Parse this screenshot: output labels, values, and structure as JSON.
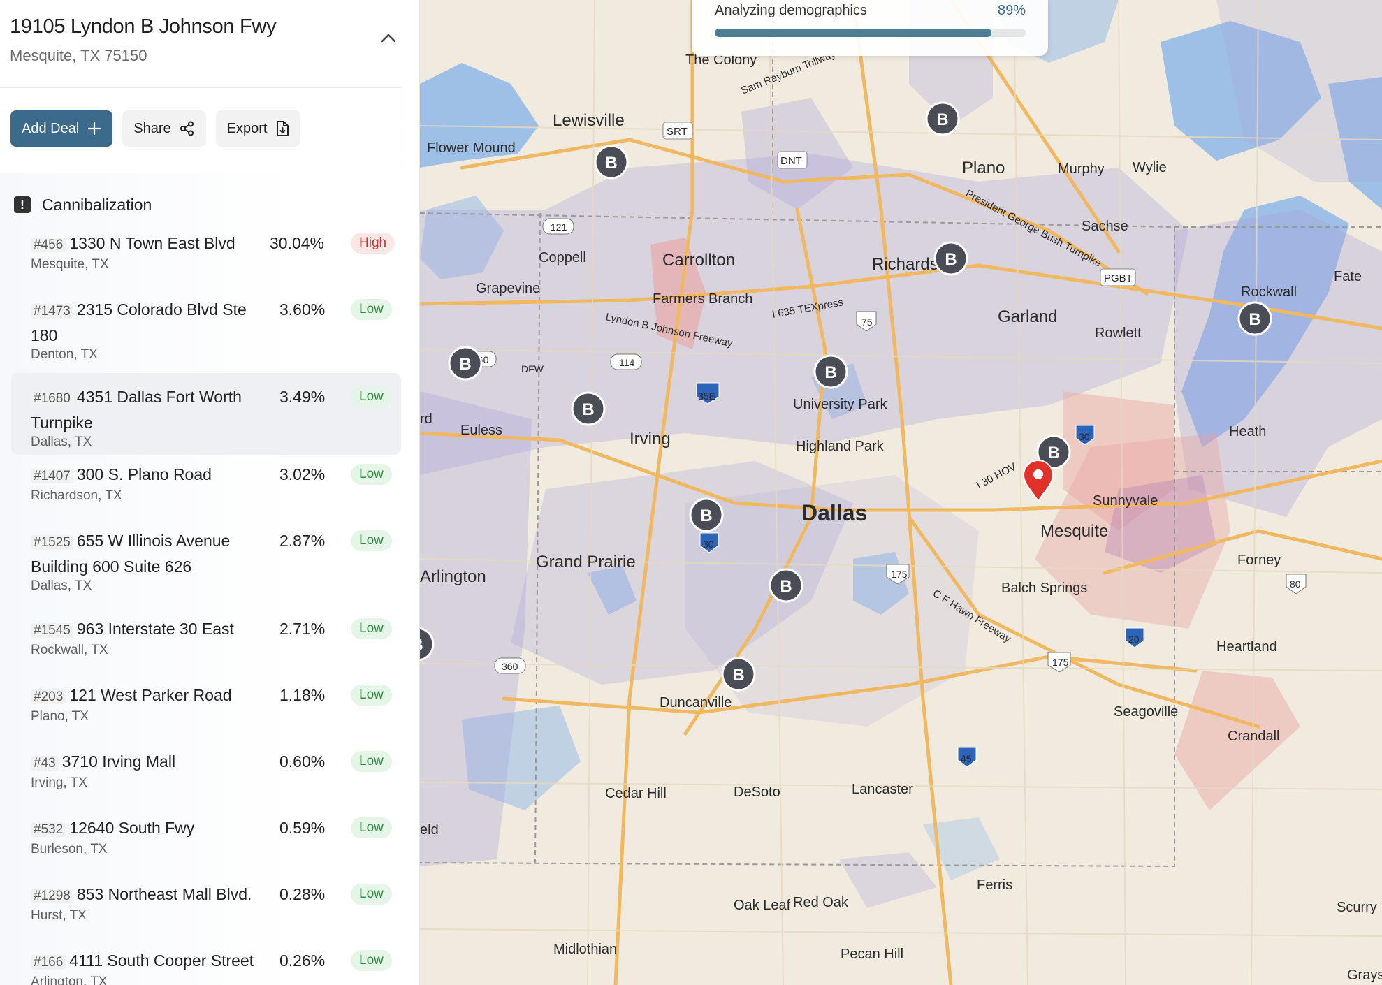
{
  "header": {
    "address_line1": "19105 Lyndon B Johnson Fwy",
    "address_line2": "Mesquite, TX 75150",
    "collapse_icon": "chevron-up-icon"
  },
  "actions": {
    "add_deal": "Add Deal",
    "share": "Share",
    "export": "Export"
  },
  "cannibalization": {
    "title": "Cannibalization",
    "icon": "warning-icon",
    "rows": [
      {
        "num": "#456",
        "address": "1330 N Town East Blvd",
        "city": "Mesquite, TX",
        "pct": "30.04%",
        "level": "High"
      },
      {
        "num": "#1473",
        "address": "2315 Colorado Blvd Ste 180",
        "city": "Denton, TX",
        "pct": "3.60%",
        "level": "Low"
      },
      {
        "num": "#1680",
        "address": "4351 Dallas Fort Worth Turnpike",
        "city": "Dallas, TX",
        "pct": "3.49%",
        "level": "Low"
      },
      {
        "num": "#1407",
        "address": "300 S. Plano Road",
        "city": "Richardson, TX",
        "pct": "3.02%",
        "level": "Low"
      },
      {
        "num": "#1525",
        "address": "655 W Illinois Avenue Building 600 Suite 626",
        "city": "Dallas, TX",
        "pct": "2.87%",
        "level": "Low"
      },
      {
        "num": "#1545",
        "address": "963 Interstate 30 East",
        "city": "Rockwall, TX",
        "pct": "2.71%",
        "level": "Low"
      },
      {
        "num": "#203",
        "address": "121 West Parker Road",
        "city": "Plano, TX",
        "pct": "1.18%",
        "level": "Low"
      },
      {
        "num": "#43",
        "address": "3710 Irving Mall",
        "city": "Irving, TX",
        "pct": "0.60%",
        "level": "Low"
      },
      {
        "num": "#532",
        "address": "12640 South Fwy",
        "city": "Burleson, TX",
        "pct": "0.59%",
        "level": "Low"
      },
      {
        "num": "#1298",
        "address": "853 Northeast Mall Blvd.",
        "city": "Hurst, TX",
        "pct": "0.28%",
        "level": "Low"
      },
      {
        "num": "#166",
        "address": "4111 South Cooper Street",
        "city": "Arlington, TX",
        "pct": "0.26%",
        "level": "Low"
      }
    ]
  },
  "progress": {
    "label": "Analyzing demographics",
    "percent_text": "89%",
    "value": 0.89
  },
  "map": {
    "city_labels": [
      "The Colony",
      "Lewisville",
      "Flower Mound",
      "Plano",
      "Murphy",
      "Wylie",
      "Sachse",
      "Coppell",
      "Carrollton",
      "Richards",
      "Grapevine",
      "Farmers Branch",
      "Garland",
      "Rowlett",
      "Rockwall",
      "Fate",
      "Heath",
      "University Park",
      "Highland Park",
      "Irving",
      "Euless",
      "Dallas",
      "Sunnyvale",
      "Mesquite",
      "Forney",
      "Grand Prairie",
      "Arlington",
      "Balch Springs",
      "Heartland",
      "Duncanville",
      "Seagoville",
      "Crandall",
      "Cedar Hill",
      "DeSoto",
      "Lancaster",
      "Ferris",
      "Oak Leaf",
      "Red Oak",
      "Midlothian",
      "Pecan Hill",
      "Scurry",
      "Grays",
      "eld",
      "rd",
      "DFW"
    ],
    "road_labels": [
      "Sam Rayburn Tollway",
      "SRT",
      "DNT",
      "President George Bush Turnpike",
      "PGBT",
      "Lyndon B Johnson Freeway",
      "I 635 TEXpress",
      "I 30 HOV",
      "C F Hawn Freeway"
    ],
    "shields": [
      "121",
      "121",
      "114",
      "360",
      "360",
      "35E",
      "75",
      "30",
      "30",
      "30",
      "30",
      "175",
      "175",
      "20",
      "45",
      "80"
    ],
    "marker_letter": "B",
    "marker_icon": "location-pin-icon",
    "colors": {
      "accent": "#3c6a8a",
      "pin": "#e0312b",
      "marker": "#4a4d55",
      "high_zone": "#e9a3a0",
      "low_zone": "#a9a3d9"
    }
  }
}
